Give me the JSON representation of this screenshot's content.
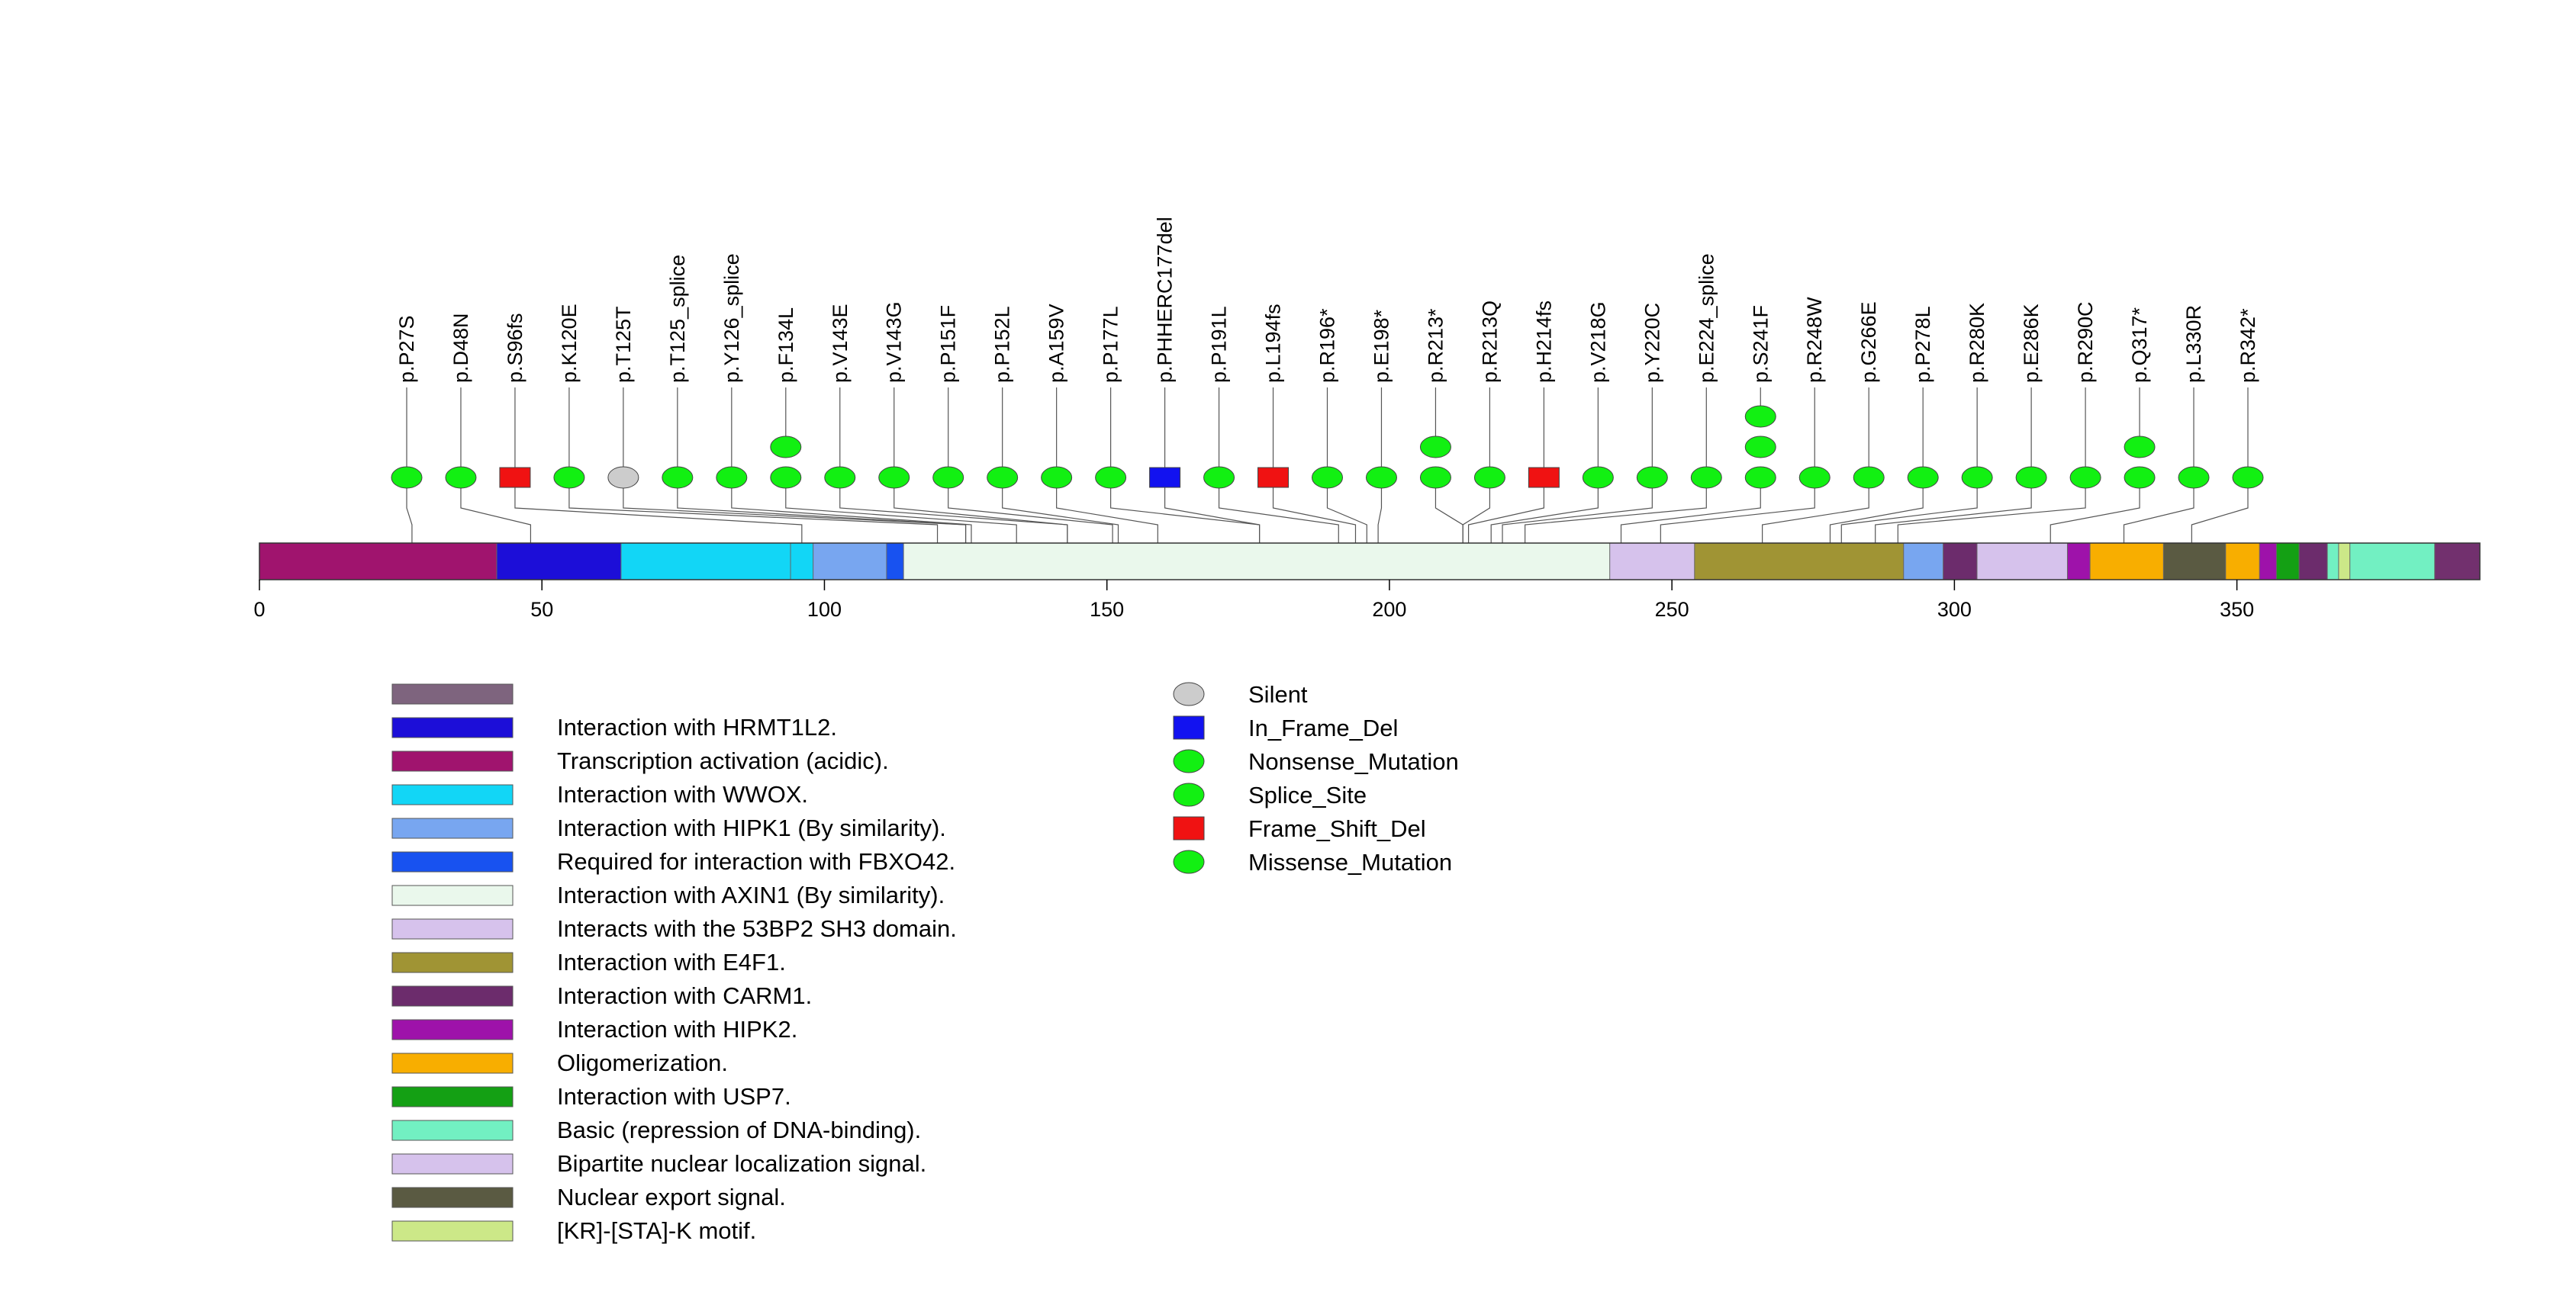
{
  "protein": {
    "length": 393
  },
  "axis": {
    "ticks": [
      0,
      50,
      100,
      150,
      200,
      250,
      300,
      350
    ]
  },
  "domains": [
    {
      "start": 1,
      "end": 43,
      "color": "#A0146E"
    },
    {
      "start": 43,
      "end": 65,
      "color": "#1C0ED8"
    },
    {
      "start": 65,
      "end": 95,
      "color": "#12D6F6"
    },
    {
      "start": 95,
      "end": 99,
      "color": "#12D6F6"
    },
    {
      "start": 99,
      "end": 112,
      "color": "#78A6F0"
    },
    {
      "start": 112,
      "end": 115,
      "color": "#1852F0"
    },
    {
      "start": 115,
      "end": 240,
      "color": "#EAF8EC"
    },
    {
      "start": 240,
      "end": 255,
      "color": "#D6C2EC"
    },
    {
      "start": 255,
      "end": 292,
      "color": "#A09434"
    },
    {
      "start": 292,
      "end": 299,
      "color": "#78A6F0"
    },
    {
      "start": 299,
      "end": 305,
      "color": "#6C2C6C"
    },
    {
      "start": 305,
      "end": 321,
      "color": "#D6C2EC"
    },
    {
      "start": 321,
      "end": 325,
      "color": "#9E12AA"
    },
    {
      "start": 325,
      "end": 338,
      "color": "#F8AE00"
    },
    {
      "start": 338,
      "end": 349,
      "color": "#5A5A42"
    },
    {
      "start": 349,
      "end": 355,
      "color": "#F8AE00"
    },
    {
      "start": 355,
      "end": 358,
      "color": "#9E12AA"
    },
    {
      "start": 358,
      "end": 362,
      "color": "#14A014"
    },
    {
      "start": 362,
      "end": 367,
      "color": "#6C2C6C"
    },
    {
      "start": 367,
      "end": 369,
      "color": "#72F0C2"
    },
    {
      "start": 369,
      "end": 371,
      "color": "#CCE888"
    },
    {
      "start": 371,
      "end": 386,
      "color": "#72F0C2"
    },
    {
      "start": 386,
      "end": 393,
      "color": "#72306E"
    }
  ],
  "mutations": [
    {
      "label": "p.P27S",
      "pos": 27,
      "types": [
        "missense"
      ]
    },
    {
      "label": "p.D48N",
      "pos": 48,
      "types": [
        "missense"
      ]
    },
    {
      "label": "p.S96fs",
      "pos": 96,
      "types": [
        "frameshift"
      ]
    },
    {
      "label": "p.K120E",
      "pos": 120,
      "types": [
        "missense"
      ]
    },
    {
      "label": "p.T125T",
      "pos": 125,
      "types": [
        "silent"
      ]
    },
    {
      "label": "p.T125_splice",
      "pos": 125,
      "types": [
        "splice"
      ]
    },
    {
      "label": "p.Y126_splice",
      "pos": 126,
      "types": [
        "splice"
      ]
    },
    {
      "label": "p.F134L",
      "pos": 134,
      "types": [
        "missense",
        "missense"
      ]
    },
    {
      "label": "p.V143E",
      "pos": 143,
      "types": [
        "missense"
      ]
    },
    {
      "label": "p.V143G",
      "pos": 143,
      "types": [
        "missense"
      ]
    },
    {
      "label": "p.P151F",
      "pos": 151,
      "types": [
        "missense"
      ]
    },
    {
      "label": "p.P152L",
      "pos": 152,
      "types": [
        "missense"
      ]
    },
    {
      "label": "p.A159V",
      "pos": 159,
      "types": [
        "missense"
      ]
    },
    {
      "label": "p.P177L",
      "pos": 177,
      "types": [
        "missense"
      ]
    },
    {
      "label": "p.PHHERC177del",
      "pos": 177,
      "types": [
        "inframe"
      ]
    },
    {
      "label": "p.P191L",
      "pos": 191,
      "types": [
        "missense"
      ]
    },
    {
      "label": "p.L194fs",
      "pos": 194,
      "types": [
        "frameshift"
      ]
    },
    {
      "label": "p.R196*",
      "pos": 196,
      "types": [
        "nonsense"
      ]
    },
    {
      "label": "p.E198*",
      "pos": 198,
      "types": [
        "nonsense"
      ]
    },
    {
      "label": "p.R213*",
      "pos": 213,
      "types": [
        "nonsense",
        "nonsense"
      ]
    },
    {
      "label": "p.R213Q",
      "pos": 213,
      "types": [
        "missense"
      ]
    },
    {
      "label": "p.H214fs",
      "pos": 214,
      "types": [
        "frameshift"
      ]
    },
    {
      "label": "p.V218G",
      "pos": 218,
      "types": [
        "missense"
      ]
    },
    {
      "label": "p.Y220C",
      "pos": 220,
      "types": [
        "missense"
      ]
    },
    {
      "label": "p.E224_splice",
      "pos": 224,
      "types": [
        "splice"
      ]
    },
    {
      "label": "p.S241F",
      "pos": 241,
      "types": [
        "missense",
        "missense",
        "missense"
      ]
    },
    {
      "label": "p.R248W",
      "pos": 248,
      "types": [
        "missense"
      ]
    },
    {
      "label": "p.G266E",
      "pos": 266,
      "types": [
        "missense"
      ]
    },
    {
      "label": "p.P278L",
      "pos": 278,
      "types": [
        "missense"
      ]
    },
    {
      "label": "p.R280K",
      "pos": 280,
      "types": [
        "missense"
      ]
    },
    {
      "label": "p.E286K",
      "pos": 286,
      "types": [
        "missense"
      ]
    },
    {
      "label": "p.R290C",
      "pos": 290,
      "types": [
        "missense"
      ]
    },
    {
      "label": "p.Q317*",
      "pos": 317,
      "types": [
        "nonsense",
        "nonsense"
      ]
    },
    {
      "label": "p.L330R",
      "pos": 330,
      "types": [
        "missense"
      ]
    },
    {
      "label": "p.R342*",
      "pos": 342,
      "types": [
        "nonsense"
      ]
    }
  ],
  "legend_domains": [
    {
      "label": "",
      "color": "#7E647E"
    },
    {
      "label": "Interaction with HRMT1L2.",
      "color": "#1C0ED8"
    },
    {
      "label": "Transcription activation (acidic).",
      "color": "#A0146E"
    },
    {
      "label": "Interaction with WWOX.",
      "color": "#12D6F6"
    },
    {
      "label": "Interaction with HIPK1 (By similarity).",
      "color": "#78A6F0"
    },
    {
      "label": "Required for interaction with FBXO42.",
      "color": "#1852F0"
    },
    {
      "label": "Interaction with AXIN1 (By similarity).",
      "color": "#EAF8EC"
    },
    {
      "label": "Interacts with the 53BP2 SH3 domain.",
      "color": "#D6C2EC"
    },
    {
      "label": "Interaction with E4F1.",
      "color": "#A09434"
    },
    {
      "label": "Interaction with CARM1.",
      "color": "#6C2C6C"
    },
    {
      "label": "Interaction with HIPK2.",
      "color": "#9E12AA"
    },
    {
      "label": "Oligomerization.",
      "color": "#F8AE00"
    },
    {
      "label": "Interaction with USP7.",
      "color": "#14A014"
    },
    {
      "label": "Basic (repression of DNA-binding).",
      "color": "#72F0C2"
    },
    {
      "label": "Bipartite nuclear localization signal.",
      "color": "#D6C2EC"
    },
    {
      "label": "Nuclear export signal.",
      "color": "#5A5A42"
    },
    {
      "label": "[KR]-[STA]-K motif.",
      "color": "#CCE888"
    }
  ],
  "legend_mutations": [
    {
      "label": "Silent",
      "shape": "ellipse",
      "color": "#CCCCCC"
    },
    {
      "label": "In_Frame_Del",
      "shape": "rect",
      "color": "#1212F0"
    },
    {
      "label": "Nonsense_Mutation",
      "shape": "ellipse",
      "color": "#12F012"
    },
    {
      "label": "Splice_Site",
      "shape": "ellipse",
      "color": "#12F012"
    },
    {
      "label": "Frame_Shift_Del",
      "shape": "rect",
      "color": "#F01212"
    },
    {
      "label": "Missense_Mutation",
      "shape": "ellipse",
      "color": "#12F012"
    }
  ],
  "colors": {
    "missense": "#12F012",
    "nonsense": "#12F012",
    "splice": "#12F012",
    "silent": "#CCCCCC",
    "frameshift": "#F01212",
    "inframe": "#1212F0"
  }
}
